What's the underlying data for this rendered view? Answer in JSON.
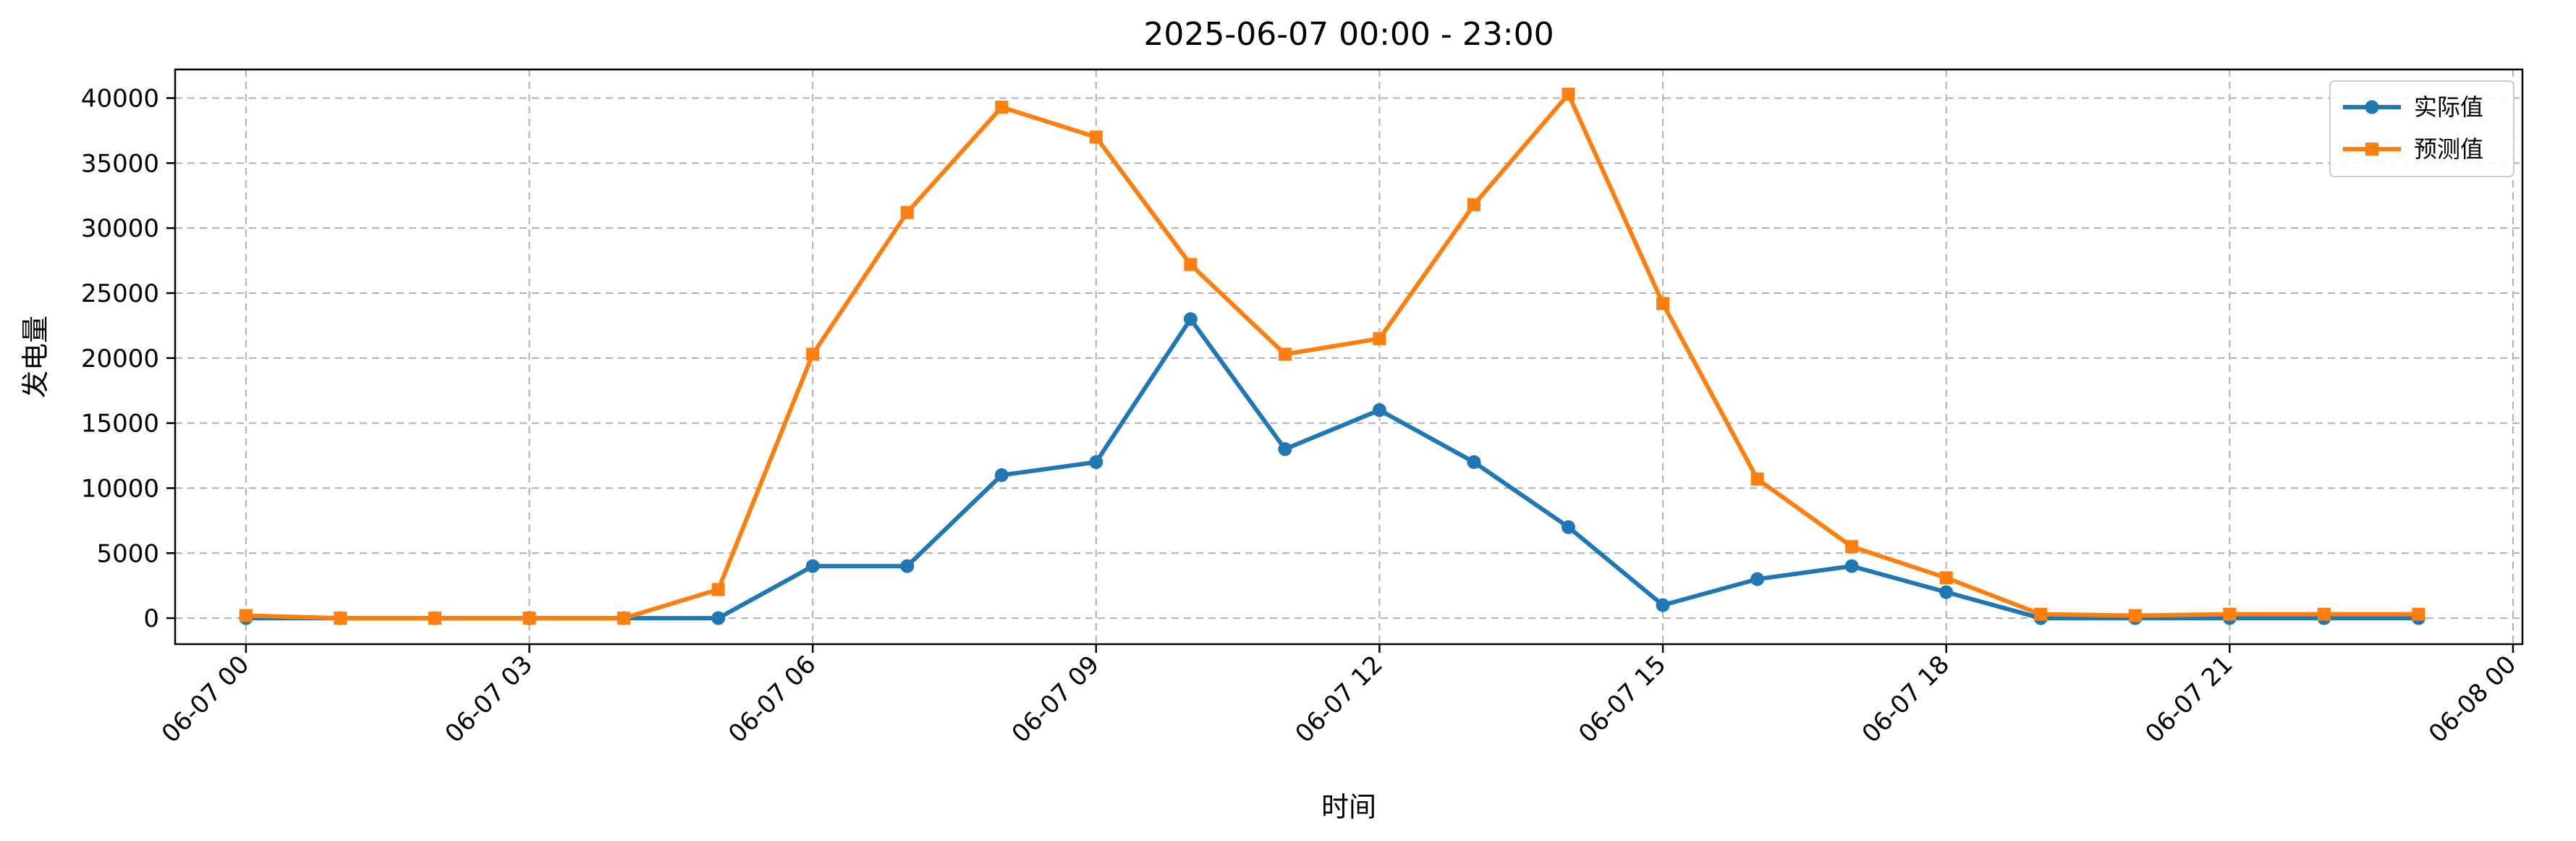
{
  "chart_data": {
    "type": "line",
    "title": "2025-06-07 00:00 - 23:00",
    "xlabel": "时间",
    "ylabel": "发电量",
    "x": [
      "00",
      "01",
      "02",
      "03",
      "04",
      "05",
      "06",
      "07",
      "08",
      "09",
      "10",
      "11",
      "12",
      "13",
      "14",
      "15",
      "16",
      "17",
      "18",
      "19",
      "20",
      "21",
      "22",
      "23"
    ],
    "x_unit": "hour of 2025-06-07",
    "xlim": [
      -0.75,
      24.1
    ],
    "x_ticks": [
      0,
      3,
      6,
      9,
      12,
      15,
      18,
      21,
      24
    ],
    "x_tick_labels": [
      "06-07 00",
      "06-07 03",
      "06-07 06",
      "06-07 09",
      "06-07 12",
      "06-07 15",
      "06-07 18",
      "06-07 21",
      "06-08 00"
    ],
    "ylim": [
      -2000,
      42200
    ],
    "y_ticks": [
      0,
      5000,
      10000,
      15000,
      20000,
      25000,
      30000,
      35000,
      40000
    ],
    "grid": true,
    "legend_position": "top-right",
    "series": [
      {
        "name": "实际值",
        "color": "#1f77b4",
        "marker": "circle",
        "values": [
          0,
          0,
          0,
          0,
          0,
          0,
          4000,
          4000,
          11000,
          12000,
          23000,
          13000,
          16000,
          12000,
          7000,
          1000,
          3000,
          4000,
          2000,
          0,
          0,
          0,
          0,
          0
        ]
      },
      {
        "name": "预测值",
        "color": "#ff7f0e",
        "marker": "square",
        "values": [
          200,
          0,
          0,
          0,
          0,
          2200,
          20300,
          31200,
          39300,
          37000,
          27200,
          20300,
          21500,
          31800,
          40300,
          24200,
          10700,
          5500,
          3100,
          300,
          200,
          300,
          300,
          300
        ]
      }
    ]
  }
}
